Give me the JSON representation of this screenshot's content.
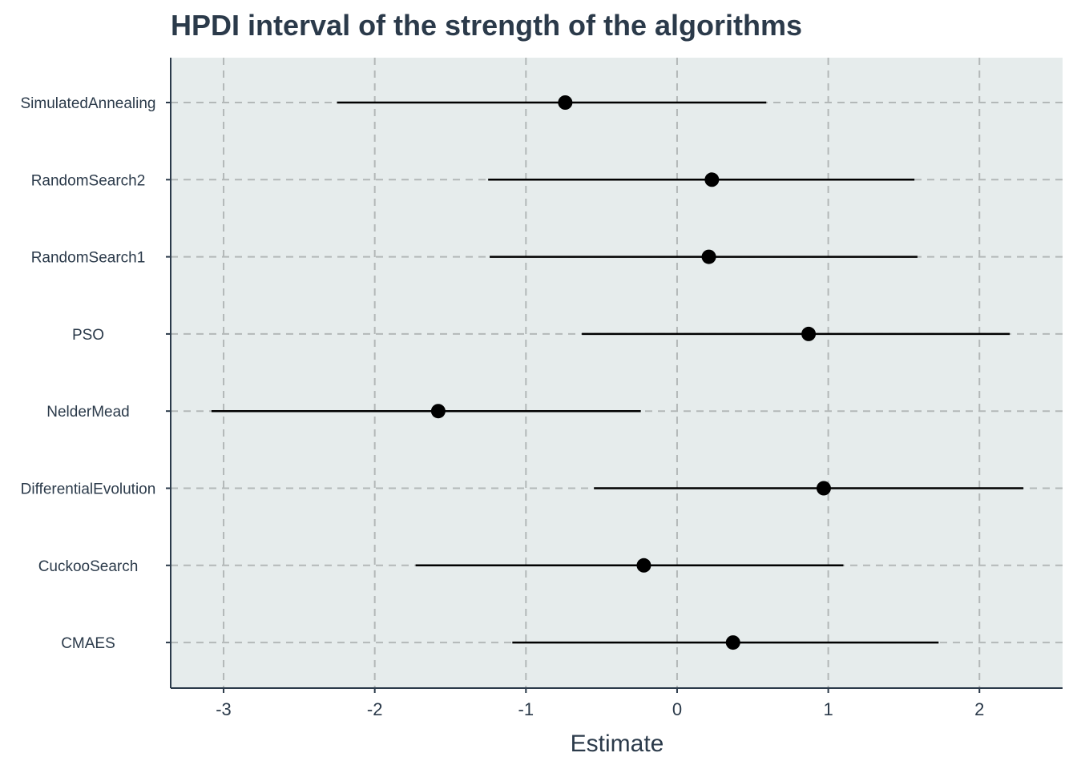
{
  "chart_data": {
    "type": "scatter",
    "title": "HPDI interval of the strength of the algorithms",
    "xlabel": "Estimate",
    "ylabel": "",
    "xlim": [
      -3.35,
      2.55
    ],
    "xticks": [
      -3,
      -2,
      -1,
      0,
      1,
      2
    ],
    "grid": true,
    "legend": "none",
    "categories": [
      "SimulatedAnnealing",
      "RandomSearch2",
      "RandomSearch1",
      "PSO",
      "NelderMead",
      "DifferentialEvolution",
      "CuckooSearch",
      "CMAES"
    ],
    "estimate": [
      -0.74,
      0.23,
      0.21,
      0.87,
      -1.58,
      0.97,
      -0.22,
      0.37
    ],
    "lower": [
      -2.25,
      -1.25,
      -1.24,
      -0.63,
      -3.08,
      -0.55,
      -1.73,
      -1.09
    ],
    "upper": [
      0.59,
      1.57,
      1.59,
      2.2,
      -0.24,
      2.29,
      1.1,
      1.73
    ],
    "colors": {
      "panel": "#e6ecec",
      "grid": "#b3b8b8",
      "axis": "#2b3a4a",
      "mark": "#000000"
    }
  }
}
